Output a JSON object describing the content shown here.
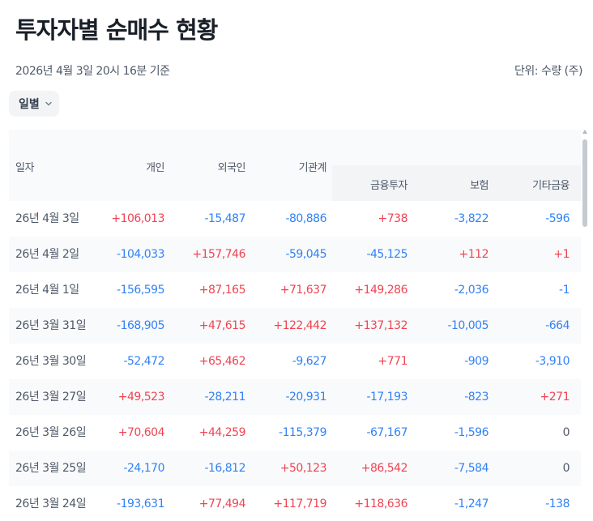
{
  "page": {
    "title": "투자자별 순매수 현황",
    "basis": "2026년 4월 3일 20시 16분 기준",
    "unit": "단위: 수량 (주)"
  },
  "period_select": {
    "label": "일별",
    "icon": "chevron-down-icon"
  },
  "table": {
    "headers": {
      "date": "일자",
      "individual": "개인",
      "foreign": "외국인",
      "institution": "기관계",
      "financial_investment": "금융투자",
      "insurance": "보험",
      "other_finance": "기타금융"
    },
    "rows": [
      {
        "date": "26년 4월 3일",
        "individual": "+106,013",
        "foreign": "-15,487",
        "institution": "-80,886",
        "financial_investment": "+738",
        "insurance": "-3,822",
        "other_finance": "-596"
      },
      {
        "date": "26년 4월 2일",
        "individual": "-104,033",
        "foreign": "+157,746",
        "institution": "-59,045",
        "financial_investment": "-45,125",
        "insurance": "+112",
        "other_finance": "+1"
      },
      {
        "date": "26년 4월 1일",
        "individual": "-156,595",
        "foreign": "+87,165",
        "institution": "+71,637",
        "financial_investment": "+149,286",
        "insurance": "-2,036",
        "other_finance": "-1"
      },
      {
        "date": "26년 3월 31일",
        "individual": "-168,905",
        "foreign": "+47,615",
        "institution": "+122,442",
        "financial_investment": "+137,132",
        "insurance": "-10,005",
        "other_finance": "-664"
      },
      {
        "date": "26년 3월 30일",
        "individual": "-52,472",
        "foreign": "+65,462",
        "institution": "-9,627",
        "financial_investment": "+771",
        "insurance": "-909",
        "other_finance": "-3,910"
      },
      {
        "date": "26년 3월 27일",
        "individual": "+49,523",
        "foreign": "-28,211",
        "institution": "-20,931",
        "financial_investment": "-17,193",
        "insurance": "-823",
        "other_finance": "+271"
      },
      {
        "date": "26년 3월 26일",
        "individual": "+70,604",
        "foreign": "+44,259",
        "institution": "-115,379",
        "financial_investment": "-67,167",
        "insurance": "-1,596",
        "other_finance": "0"
      },
      {
        "date": "26년 3월 25일",
        "individual": "-24,170",
        "foreign": "-16,812",
        "institution": "+50,123",
        "financial_investment": "+86,542",
        "insurance": "-7,584",
        "other_finance": "0"
      },
      {
        "date": "26년 3월 24일",
        "individual": "-193,631",
        "foreign": "+77,494",
        "institution": "+117,719",
        "financial_investment": "+118,636",
        "insurance": "-1,247",
        "other_finance": "-138"
      }
    ]
  },
  "colors": {
    "positive": "#f04452",
    "negative": "#3182f6",
    "neutral": "#4e5968"
  }
}
